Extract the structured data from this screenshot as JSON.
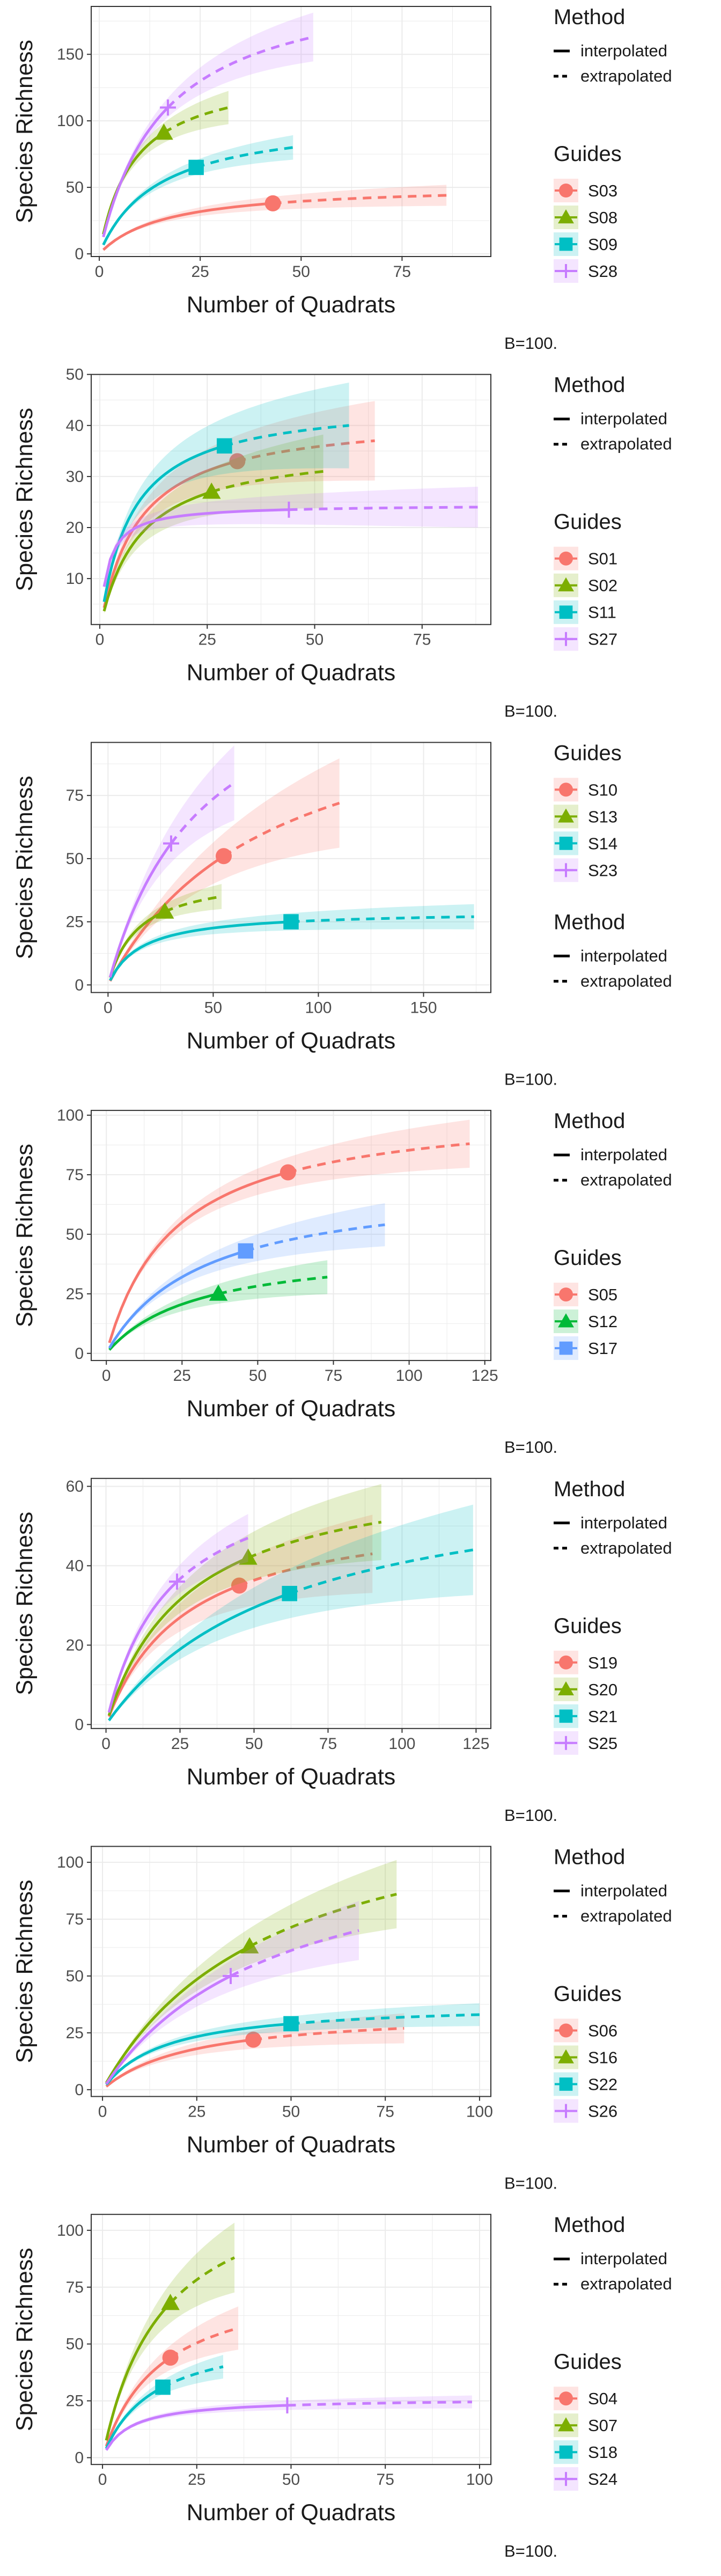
{
  "legend_titles": {
    "method": "Method",
    "guides": "Guides"
  },
  "method_labels": [
    "interpolated",
    "extrapolated"
  ],
  "bootstrap_note": "B=100.",
  "colors": {
    "c1": "#F8766D",
    "c2": "#7CAE00",
    "c3": "#00BFC4",
    "c4": "#C77CFF"
  },
  "three_colors": {
    "c1": "#F8766D",
    "c2": "#00BA38",
    "c3": "#619CFF"
  },
  "chart_data": [
    {
      "type": "line",
      "xlabel": "Number of Quadrats",
      "ylabel": "Species Richness",
      "xlim": [
        -2,
        97
      ],
      "ylim": [
        -2,
        186
      ],
      "xticks": [
        "0",
        "25",
        "50",
        "75"
      ],
      "yticks": [
        "0",
        "50",
        "100",
        "150"
      ],
      "grid": true,
      "legend_position": "right",
      "series": [
        {
          "name": "S03",
          "shape": "circle",
          "n_obs": 43,
          "obs": 38,
          "x_end": 86,
          "y_end": 44,
          "ci_rel": 0.17
        },
        {
          "name": "S08",
          "shape": "triangle",
          "n_obs": 16,
          "obs": 91,
          "x_end": 32,
          "y_end": 110,
          "ci_rel": 0.11
        },
        {
          "name": "S09",
          "shape": "square",
          "n_obs": 24,
          "obs": 65,
          "x_end": 48,
          "y_end": 80,
          "ci_rel": 0.11
        },
        {
          "name": "S28",
          "shape": "plus",
          "n_obs": 17,
          "obs": 110,
          "x_end": 53,
          "y_end": 163,
          "ci_rel": 0.11
        }
      ]
    },
    {
      "type": "line",
      "xlabel": "Number of Quadrats",
      "ylabel": "Species Richness",
      "xlim": [
        -2,
        91
      ],
      "ylim": [
        1,
        50
      ],
      "xticks": [
        "0",
        "25",
        "50",
        "75"
      ],
      "yticks": [
        "10",
        "20",
        "30",
        "40",
        "50"
      ],
      "grid": true,
      "legend_position": "right",
      "series": [
        {
          "name": "S01",
          "shape": "circle",
          "n_obs": 32,
          "obs": 33,
          "x_end": 64,
          "y_end": 37,
          "ci_rel": 0.2
        },
        {
          "name": "S02",
          "shape": "triangle",
          "n_obs": 26,
          "obs": 27,
          "x_end": 52,
          "y_end": 31,
          "ci_rel": 0.22
        },
        {
          "name": "S11",
          "shape": "square",
          "n_obs": 29,
          "obs": 36,
          "x_end": 58,
          "y_end": 40,
          "ci_rel": 0.2
        },
        {
          "name": "S27",
          "shape": "plus",
          "n_obs": 44,
          "obs": 23.5,
          "x_end": 88,
          "y_end": 24,
          "ci_rel": 0.15
        }
      ]
    },
    {
      "type": "line",
      "xlabel": "Number of Quadrats",
      "ylabel": "Species Richness",
      "xlim": [
        -8,
        182
      ],
      "ylim": [
        -3,
        96
      ],
      "xticks": [
        "0",
        "50",
        "100",
        "150"
      ],
      "yticks": [
        "0",
        "25",
        "50",
        "75"
      ],
      "grid": true,
      "legend_position": "right",
      "series": [
        {
          "name": "S10",
          "shape": "circle",
          "n_obs": 55,
          "obs": 51,
          "x_end": 110,
          "y_end": 72,
          "ci_rel": 0.24
        },
        {
          "name": "S13",
          "shape": "triangle",
          "n_obs": 27,
          "obs": 29,
          "x_end": 54,
          "y_end": 35,
          "ci_rel": 0.13
        },
        {
          "name": "S14",
          "shape": "square",
          "n_obs": 87,
          "obs": 25,
          "x_end": 174,
          "y_end": 27,
          "ci_rel": 0.17
        },
        {
          "name": "S23",
          "shape": "plus",
          "n_obs": 30,
          "obs": 56,
          "x_end": 60,
          "y_end": 80,
          "ci_rel": 0.18
        }
      ]
    },
    {
      "type": "line",
      "xlabel": "Number of Quadrats",
      "ylabel": "Species Richness",
      "xlim": [
        -5,
        127
      ],
      "ylim": [
        -3,
        102
      ],
      "xticks": [
        "0",
        "25",
        "50",
        "75",
        "100",
        "125"
      ],
      "yticks": [
        "0",
        "25",
        "50",
        "75",
        "100"
      ],
      "grid": true,
      "legend_position": "right",
      "series": [
        {
          "name": "S05",
          "shape": "circle",
          "n_obs": 60,
          "obs": 76,
          "x_end": 120,
          "y_end": 88,
          "ci_rel": 0.11
        },
        {
          "name": "S12",
          "shape": "triangle",
          "n_obs": 37,
          "obs": 25,
          "x_end": 73,
          "y_end": 32,
          "ci_rel": 0.21
        },
        {
          "name": "S17",
          "shape": "square",
          "n_obs": 46,
          "obs": 43,
          "x_end": 92,
          "y_end": 54,
          "ci_rel": 0.16
        }
      ]
    },
    {
      "type": "line",
      "xlabel": "Number of Quadrats",
      "ylabel": "Species Richness",
      "xlim": [
        -5,
        130
      ],
      "ylim": [
        -1,
        62
      ],
      "xticks": [
        "0",
        "25",
        "50",
        "75",
        "100",
        "125"
      ],
      "yticks": [
        "0",
        "20",
        "40",
        "60"
      ],
      "grid": true,
      "legend_position": "right",
      "series": [
        {
          "name": "S19",
          "shape": "circle",
          "n_obs": 45,
          "obs": 35,
          "x_end": 90,
          "y_end": 43,
          "ci_rel": 0.22
        },
        {
          "name": "S20",
          "shape": "triangle",
          "n_obs": 48,
          "obs": 42,
          "x_end": 93,
          "y_end": 51,
          "ci_rel": 0.18
        },
        {
          "name": "S21",
          "shape": "square",
          "n_obs": 62,
          "obs": 33,
          "x_end": 124,
          "y_end": 44,
          "ci_rel": 0.25
        },
        {
          "name": "S25",
          "shape": "plus",
          "n_obs": 24,
          "obs": 36,
          "x_end": 48,
          "y_end": 47,
          "ci_rel": 0.12
        }
      ]
    },
    {
      "type": "line",
      "xlabel": "Number of Quadrats",
      "ylabel": "Species Richness",
      "xlim": [
        -3,
        103
      ],
      "ylim": [
        -3,
        107
      ],
      "xticks": [
        "0",
        "25",
        "50",
        "75",
        "100"
      ],
      "yticks": [
        "0",
        "25",
        "50",
        "75",
        "100"
      ],
      "grid": true,
      "legend_position": "right",
      "series": [
        {
          "name": "S06",
          "shape": "circle",
          "n_obs": 40,
          "obs": 22,
          "x_end": 80,
          "y_end": 27,
          "ci_rel": 0.23
        },
        {
          "name": "S16",
          "shape": "triangle",
          "n_obs": 39,
          "obs": 63,
          "x_end": 78,
          "y_end": 86,
          "ci_rel": 0.17
        },
        {
          "name": "S22",
          "shape": "square",
          "n_obs": 50,
          "obs": 29,
          "x_end": 100,
          "y_end": 33,
          "ci_rel": 0.14
        },
        {
          "name": "S26",
          "shape": "plus",
          "n_obs": 34,
          "obs": 50,
          "x_end": 68,
          "y_end": 70,
          "ci_rel": 0.18
        }
      ]
    },
    {
      "type": "line",
      "xlabel": "Number of Quadrats",
      "ylabel": "Species Richness",
      "xlim": [
        -3,
        103
      ],
      "ylim": [
        -3,
        107
      ],
      "xticks": [
        "0",
        "25",
        "50",
        "75",
        "100"
      ],
      "yticks": [
        "0",
        "25",
        "50",
        "75",
        "100"
      ],
      "grid": true,
      "legend_position": "right",
      "series": [
        {
          "name": "S04",
          "shape": "circle",
          "n_obs": 18,
          "obs": 44,
          "x_end": 36,
          "y_end": 57,
          "ci_rel": 0.16
        },
        {
          "name": "S07",
          "shape": "triangle",
          "n_obs": 18,
          "obs": 68,
          "x_end": 35,
          "y_end": 88,
          "ci_rel": 0.17
        },
        {
          "name": "S18",
          "shape": "square",
          "n_obs": 16,
          "obs": 31,
          "x_end": 32,
          "y_end": 40,
          "ci_rel": 0.12
        },
        {
          "name": "S24",
          "shape": "plus",
          "n_obs": 49,
          "obs": 23,
          "x_end": 98,
          "y_end": 24.5,
          "ci_rel": 0.1
        }
      ]
    }
  ]
}
